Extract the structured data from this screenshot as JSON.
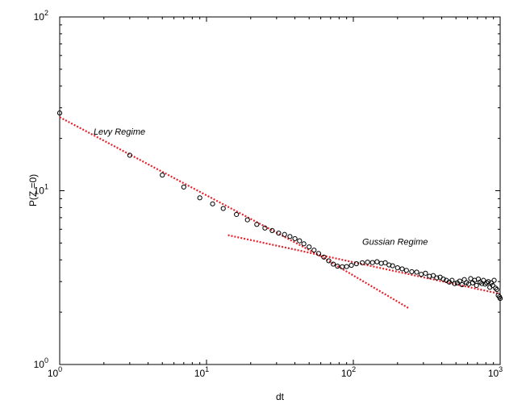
{
  "chart_data": {
    "type": "scatter",
    "title": "",
    "xlabel": "dt",
    "ylabel": "P(Z =0)",
    "xscale": "log",
    "yscale": "log",
    "xlim": [
      1,
      1000
    ],
    "ylim": [
      1,
      100
    ],
    "grid": false,
    "legend": "none",
    "x_ticks": [
      {
        "base": "10",
        "exp": "0"
      },
      {
        "base": "10",
        "exp": "1"
      },
      {
        "base": "10",
        "exp": "2"
      },
      {
        "base": "10",
        "exp": "3"
      }
    ],
    "y_ticks": [
      {
        "base": "10",
        "exp": "0"
      },
      {
        "base": "10",
        "exp": "1"
      },
      {
        "base": "10",
        "exp": "2"
      }
    ],
    "annotations": [
      {
        "text": "Levy Regime",
        "x": 1.7,
        "y": 21
      },
      {
        "text": "Gussian Regime",
        "x": 115,
        "y": 4.9
      }
    ],
    "series": [
      {
        "marker": "open-circle",
        "color": "#000000",
        "points": [
          [
            1,
            28
          ],
          [
            3,
            16
          ],
          [
            5,
            12.3
          ],
          [
            7,
            10.5
          ],
          [
            9,
            9.1
          ],
          [
            11,
            8.4
          ],
          [
            13,
            7.9
          ],
          [
            16,
            7.3
          ],
          [
            19,
            6.8
          ],
          [
            22,
            6.4
          ],
          [
            25,
            6.1
          ],
          [
            28,
            5.9
          ],
          [
            31,
            5.7
          ],
          [
            34,
            5.6
          ],
          [
            37,
            5.45
          ],
          [
            40,
            5.3
          ],
          [
            43,
            5.15
          ],
          [
            46,
            4.95
          ],
          [
            50,
            4.75
          ],
          [
            54,
            4.55
          ],
          [
            58,
            4.35
          ],
          [
            63,
            4.15
          ],
          [
            68,
            3.95
          ],
          [
            73,
            3.78
          ],
          [
            78,
            3.68
          ],
          [
            84,
            3.65
          ],
          [
            90,
            3.66
          ],
          [
            97,
            3.72
          ],
          [
            105,
            3.8
          ],
          [
            115,
            3.85
          ],
          [
            125,
            3.88
          ],
          [
            135,
            3.86
          ],
          [
            145,
            3.9
          ],
          [
            155,
            3.82
          ],
          [
            165,
            3.85
          ],
          [
            175,
            3.74
          ],
          [
            185,
            3.7
          ],
          [
            200,
            3.6
          ],
          [
            215,
            3.55
          ],
          [
            230,
            3.48
          ],
          [
            250,
            3.42
          ],
          [
            270,
            3.4
          ],
          [
            290,
            3.3
          ],
          [
            310,
            3.35
          ],
          [
            330,
            3.22
          ],
          [
            350,
            3.25
          ],
          [
            370,
            3.15
          ],
          [
            390,
            3.18
          ],
          [
            410,
            3.1
          ],
          [
            430,
            3.05
          ],
          [
            450,
            2.98
          ],
          [
            470,
            3.05
          ],
          [
            490,
            2.92
          ],
          [
            510,
            2.95
          ],
          [
            530,
            3.02
          ],
          [
            550,
            2.88
          ],
          [
            570,
            3.08
          ],
          [
            590,
            2.96
          ],
          [
            610,
            2.9
          ],
          [
            630,
            3.12
          ],
          [
            650,
            2.95
          ],
          [
            670,
            3.05
          ],
          [
            690,
            2.85
          ],
          [
            710,
            3.1
          ],
          [
            730,
            2.98
          ],
          [
            750,
            2.92
          ],
          [
            770,
            3.05
          ],
          [
            790,
            2.9
          ],
          [
            810,
            2.95
          ],
          [
            830,
            3.0
          ],
          [
            850,
            2.78
          ],
          [
            870,
            2.95
          ],
          [
            890,
            2.85
          ],
          [
            910,
            3.05
          ],
          [
            930,
            2.75
          ],
          [
            950,
            2.7
          ],
          [
            970,
            2.5
          ],
          [
            990,
            2.45
          ],
          [
            1000,
            2.4
          ]
        ]
      },
      {
        "type": "line",
        "style": "dotted",
        "color": "#e8202a",
        "points": [
          [
            1,
            26.5
          ],
          [
            60,
            4.2
          ]
        ]
      },
      {
        "type": "line",
        "style": "dotted",
        "color": "#e8202a",
        "points": [
          [
            60,
            4.2
          ],
          [
            240,
            2.1
          ]
        ]
      },
      {
        "type": "line",
        "style": "dotted",
        "color": "#e8202a",
        "points": [
          [
            14,
            5.55
          ],
          [
            1000,
            2.55
          ]
        ]
      }
    ]
  }
}
